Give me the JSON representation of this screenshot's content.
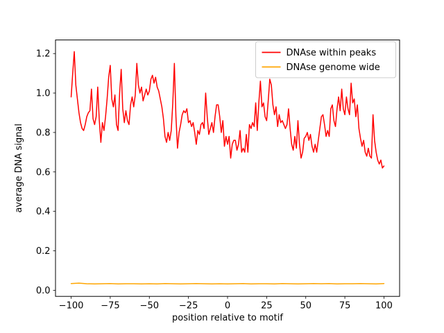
{
  "chart_data": {
    "type": "line",
    "title": "",
    "xlabel": "position relative to motif",
    "ylabel": "average DNA signal",
    "xlim": [
      -110,
      110
    ],
    "ylim": [
      -0.031,
      1.269
    ],
    "xticks": [
      -100,
      -75,
      -50,
      -25,
      0,
      25,
      50,
      75,
      100
    ],
    "yticks": [
      0.0,
      0.2,
      0.4,
      0.6,
      0.8,
      1.0,
      1.2
    ],
    "grid": false,
    "legend": {
      "position": "upper right",
      "border_color": "#cccccc",
      "background": "#ffffff"
    },
    "series": [
      {
        "name": "DNAse within peaks",
        "color": "#ff0000",
        "x_start": -100,
        "x_step": 1,
        "values": [
          0.98,
          1.1,
          1.21,
          1.04,
          0.97,
          0.9,
          0.85,
          0.82,
          0.81,
          0.84,
          0.88,
          0.9,
          0.91,
          1.02,
          0.87,
          0.84,
          0.88,
          1.03,
          0.86,
          0.75,
          0.85,
          0.81,
          0.88,
          0.97,
          1.08,
          1.14,
          0.97,
          0.93,
          0.99,
          0.84,
          0.81,
          1.0,
          1.12,
          0.92,
          0.85,
          0.91,
          0.86,
          0.84,
          0.94,
          0.98,
          0.93,
          0.99,
          1.15,
          1.04,
          1.0,
          1.03,
          0.96,
          0.99,
          1.02,
          0.99,
          1.01,
          1.07,
          1.09,
          1.05,
          1.08,
          1.03,
          1.01,
          0.97,
          0.93,
          0.87,
          0.78,
          0.75,
          0.8,
          0.76,
          0.81,
          0.95,
          1.15,
          0.88,
          0.72,
          0.8,
          0.84,
          0.89,
          0.91,
          0.9,
          0.92,
          0.85,
          0.86,
          0.83,
          0.85,
          0.8,
          0.74,
          0.81,
          0.79,
          0.84,
          0.85,
          0.82,
          1.0,
          0.88,
          0.79,
          0.82,
          0.85,
          0.8,
          0.88,
          0.94,
          0.94,
          0.88,
          0.8,
          0.86,
          0.73,
          0.78,
          0.74,
          0.78,
          0.67,
          0.74,
          0.76,
          0.76,
          0.71,
          0.74,
          0.81,
          0.7,
          0.72,
          0.7,
          0.79,
          0.7,
          0.84,
          0.82,
          0.85,
          0.83,
          0.95,
          0.81,
          0.95,
          1.06,
          0.93,
          0.95,
          0.88,
          0.86,
          0.96,
          1.07,
          1.04,
          0.94,
          0.89,
          0.93,
          0.83,
          0.89,
          0.85,
          0.86,
          0.84,
          0.82,
          0.84,
          0.92,
          0.82,
          0.74,
          0.71,
          0.78,
          0.72,
          0.86,
          0.74,
          0.67,
          0.7,
          0.77,
          0.78,
          0.8,
          0.76,
          0.79,
          0.73,
          0.7,
          0.74,
          0.7,
          0.76,
          0.82,
          0.88,
          0.89,
          0.84,
          0.78,
          0.81,
          0.78,
          0.92,
          0.94,
          0.86,
          0.83,
          0.92,
          0.98,
          0.91,
          1.02,
          0.92,
          0.89,
          0.98,
          0.92,
          0.89,
          1.05,
          0.95,
          0.97,
          0.88,
          0.94,
          0.82,
          0.77,
          0.73,
          0.76,
          0.7,
          0.68,
          0.72,
          0.68,
          0.67,
          0.89,
          0.76,
          0.7,
          0.66,
          0.64,
          0.66,
          0.62,
          0.63
        ]
      },
      {
        "name": "DNAse genome wide",
        "color": "#ffa500",
        "x_start": -100,
        "x_step": 5,
        "values": [
          0.034,
          0.036,
          0.033,
          0.032,
          0.033,
          0.034,
          0.032,
          0.033,
          0.033,
          0.032,
          0.033,
          0.032,
          0.034,
          0.033,
          0.032,
          0.033,
          0.034,
          0.033,
          0.032,
          0.033,
          0.032,
          0.033,
          0.034,
          0.032,
          0.033,
          0.033,
          0.032,
          0.034,
          0.033,
          0.032,
          0.033,
          0.034,
          0.033,
          0.034,
          0.032,
          0.033,
          0.033,
          0.034,
          0.033,
          0.032,
          0.034
        ]
      }
    ]
  }
}
